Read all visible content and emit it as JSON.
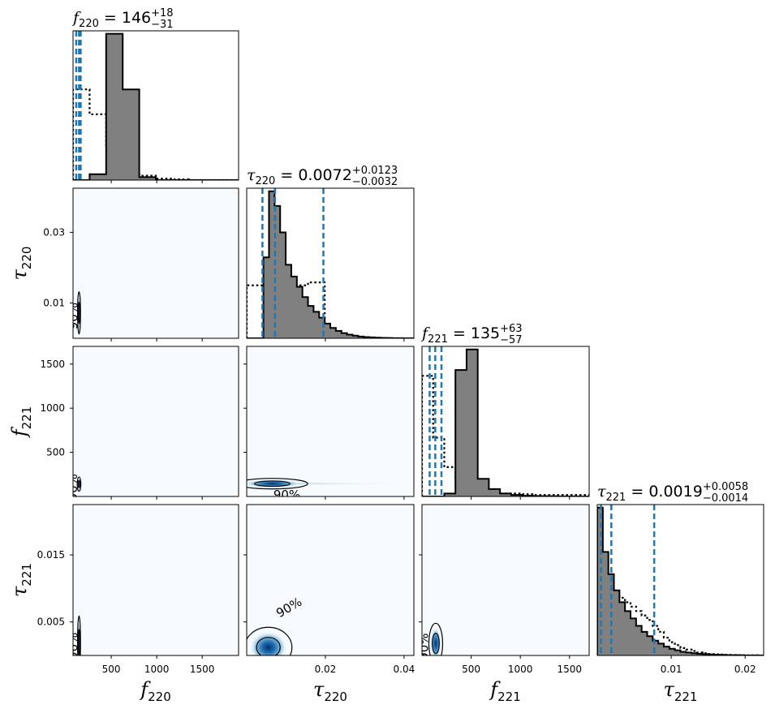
{
  "chart_data": {
    "type": "corner",
    "parameters": [
      {
        "id": "f220",
        "symbol": "f",
        "subscript": "220",
        "range": [
          80,
          1900
        ],
        "ticks": [
          500,
          1000,
          1500
        ],
        "tick_labels": [
          "500",
          "1000",
          "1500"
        ],
        "title_value": "146",
        "title_plus": "+18",
        "title_minus": "−31",
        "quantiles": [
          115,
          146,
          164
        ],
        "posterior_hist": [
          0,
          0.04,
          1.0,
          0.62,
          0.02,
          0,
          0,
          0,
          0,
          0
        ],
        "prior_hist": [
          0.62,
          0.45,
          0.22,
          0.05,
          0.03,
          0.01,
          0.005,
          0,
          0,
          0
        ]
      },
      {
        "id": "tau220",
        "symbol": "τ",
        "subscript": "220",
        "range": [
          0.0,
          0.0425
        ],
        "ticks": [
          0.01,
          0.03
        ],
        "tick_labels": [
          "0.01",
          "0.03"
        ],
        "xticks": [
          0.02,
          0.04
        ],
        "xtick_labels": [
          "0.02",
          "0.04"
        ],
        "title_value": "0.0072",
        "title_plus": "+0.0123",
        "title_minus": "−0.0032",
        "quantiles": [
          0.004,
          0.0072,
          0.0195
        ],
        "posterior_hist": [
          0.0,
          0.0,
          0.0,
          0.55,
          1.0,
          0.9,
          0.72,
          0.5,
          0.42,
          0.35,
          0.28,
          0.22,
          0.18,
          0.14,
          0.1,
          0.07,
          0.05,
          0.035,
          0.025,
          0.018,
          0.012,
          0.008,
          0.006,
          0.004,
          0.003,
          0.002,
          0.001,
          0.001,
          0.0,
          0.0
        ],
        "prior_hist": [
          0.36,
          0.36,
          0.36,
          0.36,
          0.36,
          0.36,
          0.36,
          0.36,
          0.34,
          0.36,
          0.36,
          0.38,
          0.38,
          0.38,
          0.0,
          0.0,
          0.0,
          0.0,
          0.0,
          0.0,
          0.0,
          0.0,
          0.0,
          0.0,
          0.0,
          0.0,
          0.0,
          0.0,
          0.0,
          0.0
        ]
      },
      {
        "id": "f221",
        "symbol": "f",
        "subscript": "221",
        "range": [
          0,
          1700
        ],
        "ticks": [
          500,
          1000,
          1500
        ],
        "tick_labels": [
          "500",
          "1000",
          "1500"
        ],
        "title_value": "135",
        "title_plus": "+63",
        "title_minus": "−57",
        "quantiles": [
          78,
          135,
          198
        ],
        "posterior_hist": [
          0.0,
          0.0,
          0.02,
          0.86,
          1.0,
          0.12,
          0.05,
          0.02,
          0.01,
          0.005,
          0.003,
          0.002,
          0.001,
          0.001,
          0.0
        ],
        "prior_hist": [
          0.82,
          0.4,
          0.2,
          0.12,
          0.06,
          0.04,
          0.03,
          0.02,
          0.02,
          0.015,
          0.01,
          0.01,
          0.01,
          0.01,
          0.01
        ]
      },
      {
        "id": "tau221",
        "symbol": "τ",
        "subscript": "221",
        "range": [
          0.0,
          0.0225
        ],
        "ticks": [
          0.005,
          0.015
        ],
        "tick_labels": [
          "0.005",
          "0.015"
        ],
        "xticks": [
          0.01,
          0.02
        ],
        "xtick_labels": [
          "0.01",
          "0.02"
        ],
        "title_value": "0.0019",
        "title_plus": "+0.0058",
        "title_minus": "−0.0014",
        "quantiles": [
          0.0005,
          0.0019,
          0.0077
        ],
        "posterior_hist": [
          1.0,
          0.7,
          0.55,
          0.44,
          0.36,
          0.3,
          0.25,
          0.2,
          0.16,
          0.13,
          0.1,
          0.08,
          0.06,
          0.045,
          0.035,
          0.025,
          0.02,
          0.015,
          0.012,
          0.009,
          0.007,
          0.005,
          0.004,
          0.003,
          0.002,
          0.002,
          0.001,
          0.001,
          0.001,
          0.0
        ],
        "prior_hist": [
          0.55,
          0.48,
          0.45,
          0.42,
          0.39,
          0.36,
          0.33,
          0.3,
          0.27,
          0.24,
          0.2,
          0.16,
          0.12,
          0.09,
          0.07,
          0.05,
          0.04,
          0.03,
          0.02,
          0.015,
          0.01,
          0.008,
          0.006,
          0.004,
          0.003,
          0.002,
          0.002,
          0.001,
          0.001,
          0.0
        ]
      }
    ],
    "contour_label": "90%",
    "density_peaks": [
      {
        "row": 1,
        "col": 0,
        "x": 146,
        "y": 0.0072,
        "sx": 8,
        "sy": 0.003
      },
      {
        "row": 2,
        "col": 0,
        "x": 146,
        "y": 140,
        "sx": 10,
        "sy": 40
      },
      {
        "row": 2,
        "col": 1,
        "x": 0.0065,
        "y": 145,
        "sx": 0.0045,
        "sy": 30
      },
      {
        "row": 3,
        "col": 0,
        "x": 146,
        "y": 0.0019,
        "sx": 8,
        "sy": 0.002
      },
      {
        "row": 3,
        "col": 1,
        "x": 0.0055,
        "y": 0.0012,
        "sx": 0.003,
        "sy": 0.0015
      },
      {
        "row": 3,
        "col": 2,
        "x": 140,
        "y": 0.0018,
        "sx": 35,
        "sy": 0.0015
      }
    ],
    "colors": {
      "posterior_fill": "#808080",
      "quantile_line": "#1f77b4",
      "density_low": "#f7fbff",
      "density_high": "#08519c"
    }
  }
}
